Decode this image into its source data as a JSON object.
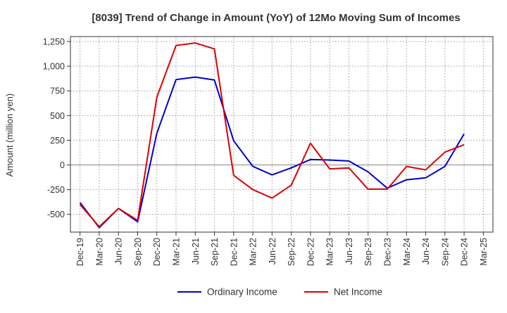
{
  "chart_data": {
    "type": "line",
    "title": "[8039]  Trend of Change in Amount (YoY) of 12Mo Moving Sum of Incomes",
    "ylabel": "Amount (million yen)",
    "xlabel": "",
    "ylim": [
      -680,
      1300
    ],
    "yticks": [
      -500,
      -250,
      0,
      250,
      500,
      750,
      1000,
      1250
    ],
    "ytick_labels": [
      "-500",
      "-250",
      "0",
      "250",
      "500",
      "750",
      "1,000",
      "1,250"
    ],
    "categories": [
      "Dec-19",
      "Mar-20",
      "Jun-20",
      "Sep-20",
      "Dec-20",
      "Mar-21",
      "Jun-21",
      "Sep-21",
      "Dec-21",
      "Mar-22",
      "Jun-22",
      "Sep-22",
      "Dec-22",
      "Mar-23",
      "Jun-23",
      "Sep-23",
      "Dec-23",
      "Mar-24",
      "Jun-24",
      "Sep-24",
      "Dec-24",
      "Mar-25"
    ],
    "grid": true,
    "legend_position": "bottom",
    "series": [
      {
        "name": "Ordinary Income",
        "color": "#0000cc",
        "values": [
          -380,
          -635,
          -440,
          -575,
          320,
          865,
          890,
          860,
          245,
          -15,
          -100,
          -30,
          55,
          50,
          40,
          -70,
          -235,
          -150,
          -130,
          -15,
          315,
          null
        ]
      },
      {
        "name": "Net Income",
        "color": "#dd0000",
        "values": [
          -400,
          -625,
          -440,
          -560,
          685,
          1210,
          1235,
          1175,
          -105,
          -250,
          -335,
          -205,
          220,
          -40,
          -30,
          -245,
          -245,
          -15,
          -50,
          130,
          205,
          null
        ]
      }
    ]
  }
}
